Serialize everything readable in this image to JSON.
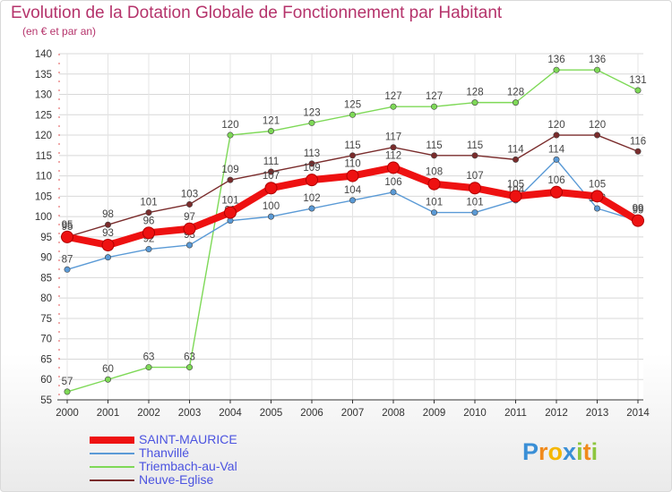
{
  "title": "Evolution de la Dotation Globale de Fonctionnement par Habitant",
  "subtitle": "(en € et par an)",
  "logo": {
    "text": "Proxiti",
    "letters": [
      {
        "ch": "P",
        "color": "#3a8fd6"
      },
      {
        "ch": "r",
        "color": "#f08a1c"
      },
      {
        "ch": "o",
        "color": "#f5b700"
      },
      {
        "ch": "x",
        "color": "#3a8fd6"
      },
      {
        "ch": "i",
        "color": "#8dc63f"
      },
      {
        "ch": "t",
        "color": "#f08a1c"
      },
      {
        "ch": "i",
        "color": "#8dc63f"
      }
    ]
  },
  "chart_data": {
    "type": "line",
    "title": "Evolution de la Dotation Globale de Fonctionnement par Habitant",
    "subtitle": "(en € et par an)",
    "xlabel": "",
    "ylabel": "",
    "categories": [
      "2000",
      "2001",
      "2002",
      "2003",
      "2004",
      "2005",
      "2006",
      "2007",
      "2008",
      "2009",
      "2010",
      "2011",
      "2012",
      "2013",
      "2014"
    ],
    "ylim": [
      55,
      140
    ],
    "yticks": [
      55,
      60,
      65,
      70,
      75,
      80,
      85,
      90,
      95,
      100,
      105,
      110,
      115,
      120,
      125,
      130,
      135,
      140
    ],
    "grid": true,
    "legend_position": "bottom-left",
    "series": [
      {
        "name": "Triembach-au-Val",
        "color": "#7ed957",
        "values": [
          57,
          60,
          63,
          63,
          120,
          121,
          123,
          125,
          127,
          127,
          128,
          128,
          136,
          136,
          131
        ],
        "labels": [
          "57",
          "60",
          "63",
          "63",
          "120",
          "121",
          "123",
          "125",
          "127",
          "127",
          "128",
          "128",
          "136",
          "136",
          "131"
        ]
      },
      {
        "name": "Neuve-Eglise",
        "color": "#7a2c2c",
        "values": [
          95,
          98,
          101,
          103,
          109,
          111,
          113,
          115,
          117,
          115,
          115,
          114,
          120,
          120,
          116
        ],
        "labels": [
          "95",
          "98",
          "101",
          "103",
          "109",
          "111",
          "113",
          "115",
          "117",
          "115",
          "115",
          "114",
          "120",
          "120",
          "116"
        ]
      },
      {
        "name": "Thanvillé",
        "color": "#5a9ad6",
        "values": [
          87,
          90,
          92,
          93,
          99,
          100,
          102,
          104,
          106,
          101,
          101,
          104,
          114,
          102,
          99
        ],
        "labels": [
          "87",
          "90",
          "92",
          "93",
          "99",
          "100",
          "102",
          "104",
          "106",
          "101",
          "101",
          "104",
          "114",
          "102",
          "99"
        ]
      },
      {
        "name": "SAINT-MAURICE",
        "color": "#ee1111",
        "values": [
          95,
          93,
          96,
          97,
          101,
          107,
          109,
          110,
          112,
          108,
          107,
          105,
          106,
          105,
          99
        ],
        "labels": [
          "95",
          "93",
          "96",
          "97",
          "101",
          "107",
          "109",
          "110",
          "112",
          "108",
          "107",
          "105",
          "106",
          "105",
          "99"
        ]
      }
    ],
    "legend": [
      {
        "name": "SAINT-MAURICE",
        "color": "#ee1111",
        "thick": true
      },
      {
        "name": "Thanvillé",
        "color": "#5a9ad6",
        "thick": false
      },
      {
        "name": "Triembach-au-Val",
        "color": "#7ed957",
        "thick": false
      },
      {
        "name": "Neuve-Eglise",
        "color": "#7a2c2c",
        "thick": false
      }
    ]
  }
}
